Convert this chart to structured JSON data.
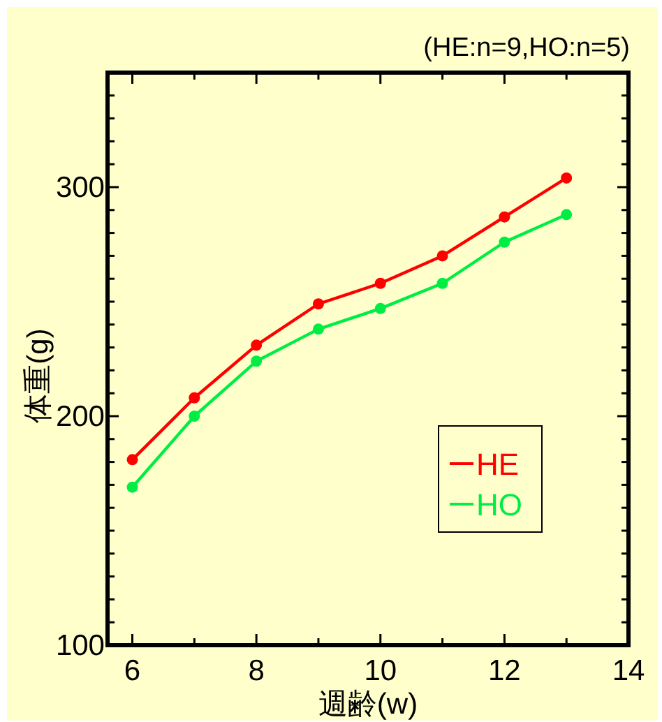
{
  "chart_data": {
    "type": "line",
    "xlabel": "週齢(w)",
    "ylabel": "体重(g)",
    "annotations": [
      "(HE:n=9,HO:n=5)"
    ],
    "x": [
      6,
      7,
      8,
      9,
      10,
      11,
      12,
      13
    ],
    "series": [
      {
        "name": "HE",
        "color": "#ff0000",
        "values": [
          181,
          208,
          231,
          249,
          258,
          270,
          287,
          304
        ]
      },
      {
        "name": "HO",
        "color": "#00ee44",
        "values": [
          169,
          200,
          224,
          238,
          247,
          258,
          276,
          288
        ]
      }
    ],
    "xlim": [
      5.6,
      14
    ],
    "ylim": [
      100,
      350
    ],
    "xticks": [
      6,
      {
        "value": 7,
        "label": null
      },
      8,
      {
        "value": 9,
        "label": null
      },
      10,
      {
        "value": 11,
        "label": null
      },
      12,
      {
        "value": 13,
        "label": null
      },
      14
    ],
    "yticks": [
      100,
      {
        "value": 110,
        "label": null
      },
      {
        "value": 120,
        "label": null
      },
      {
        "value": 130,
        "label": null
      },
      {
        "value": 140,
        "label": null
      },
      {
        "value": 150,
        "label": null
      },
      {
        "value": 160,
        "label": null
      },
      {
        "value": 170,
        "label": null
      },
      {
        "value": 180,
        "label": null
      },
      {
        "value": 190,
        "label": null
      },
      200,
      {
        "value": 210,
        "label": null
      },
      {
        "value": 220,
        "label": null
      },
      {
        "value": 230,
        "label": null
      },
      {
        "value": 240,
        "label": null
      },
      {
        "value": 250,
        "label": null
      },
      {
        "value": 260,
        "label": null
      },
      {
        "value": 270,
        "label": null
      },
      {
        "value": 280,
        "label": null
      },
      {
        "value": 290,
        "label": null
      },
      300,
      {
        "value": 310,
        "label": null
      },
      {
        "value": 320,
        "label": null
      },
      {
        "value": 330,
        "label": null
      },
      {
        "value": 340,
        "label": null
      }
    ],
    "marker": "circle",
    "legend": "right",
    "grid": false
  }
}
